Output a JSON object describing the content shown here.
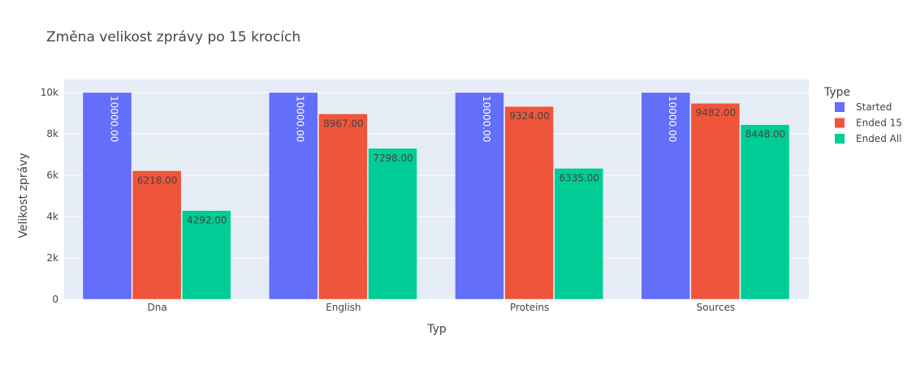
{
  "chart_data": {
    "type": "bar",
    "title": "Změna velikost zprávy po 15 krocích",
    "xlabel": "Typ",
    "ylabel": "Velikost zprávy",
    "categories": [
      "Dna",
      "English",
      "Proteins",
      "Sources"
    ],
    "series": [
      {
        "name": "Started",
        "color": "#636efa",
        "values": [
          10000,
          10000,
          10000,
          10000
        ],
        "labels": [
          "10000.00",
          "10000.00",
          "10000.00",
          "10000.00"
        ]
      },
      {
        "name": "Ended 15",
        "color": "#ef553b",
        "values": [
          6218,
          8967,
          9324,
          9482
        ],
        "labels": [
          "6218.00",
          "8967.00",
          "9324.00",
          "9482.00"
        ]
      },
      {
        "name": "Ended All",
        "color": "#00cc96",
        "values": [
          4292,
          7298,
          6335,
          8448
        ],
        "labels": [
          "4292.00",
          "7298.00",
          "6335.00",
          "8448.00"
        ]
      }
    ],
    "ylim": [
      0,
      10000
    ],
    "yticks": [
      0,
      2000,
      4000,
      6000,
      8000,
      10000
    ],
    "ytick_labels": [
      "0",
      "2k",
      "4k",
      "6k",
      "8k",
      "10k"
    ],
    "legend_title": "Type",
    "legend_position": "right",
    "grid": true,
    "plot_background": "#e5ecf6"
  }
}
